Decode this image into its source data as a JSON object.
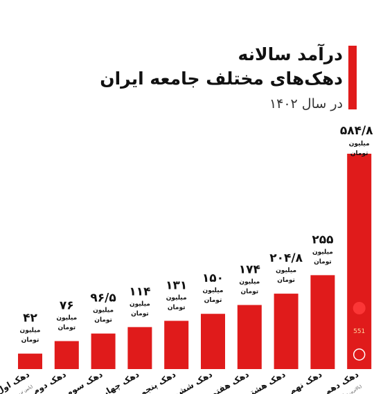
{
  "title": {
    "line1": "درآمد سالانه",
    "line2": "دهک‌های مختلف جامعه ایران",
    "subtitle": "در سال ۱۴۰۲"
  },
  "colors": {
    "bar": "#e01b1b",
    "text": "#111111",
    "accent_dot": "#ff3b3b",
    "badge_text": "#ffd9a0"
  },
  "chart_data": {
    "type": "bar",
    "unit_line1": "میلیون",
    "unit_line2": "تومان",
    "categories": [
      "دهک اول",
      "دهک دوم",
      "دهک سوم",
      "دهک چهارم",
      "دهک پنجم",
      "دهک ششم",
      "دهک هفتم",
      "دهک هشتم",
      "دهک نهم",
      "دهک دهم"
    ],
    "values": [
      42,
      76,
      96.5,
      114,
      131,
      150,
      174,
      204.8,
      255,
      584.8
    ],
    "value_labels": [
      "۴۲",
      "۷۶",
      "۹۶/۵",
      "۱۱۴",
      "۱۳۱",
      "۱۵۰",
      "۱۷۴",
      "۲۰۴/۸",
      "۲۵۵",
      "۵۸۴/۸"
    ],
    "footnotes": [
      "(پایین ترین درآمد)",
      "(بالاترین درآمد)"
    ],
    "badge_text": "551",
    "ylim": [
      0,
      600
    ],
    "grid": false,
    "legend": "none"
  }
}
